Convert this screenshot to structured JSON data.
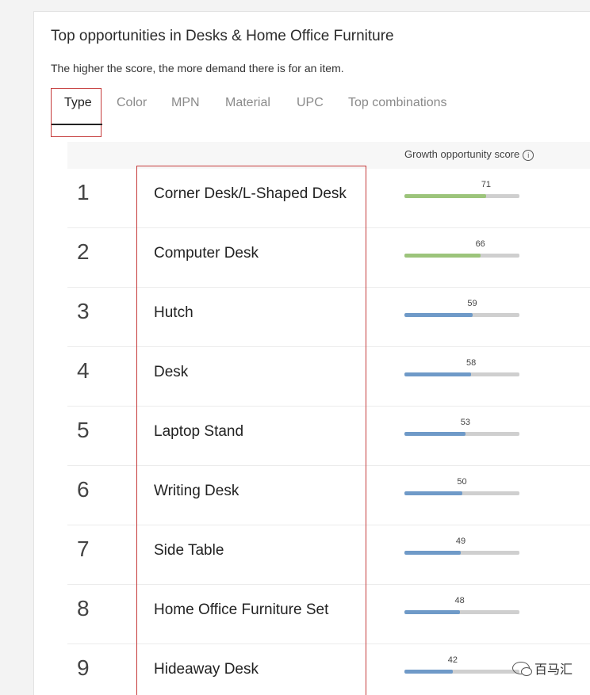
{
  "header": {
    "title": "Top opportunities in Desks & Home Office Furniture",
    "subtitle": "The higher the score, the more demand there is for an item."
  },
  "tabs": [
    {
      "label": "Type",
      "active": true
    },
    {
      "label": "Color",
      "active": false
    },
    {
      "label": "MPN",
      "active": false
    },
    {
      "label": "Material",
      "active": false
    },
    {
      "label": "UPC",
      "active": false
    },
    {
      "label": "Top combinations",
      "active": false
    }
  ],
  "table": {
    "score_header": "Growth opportunity score",
    "info_icon": "info-circle-icon",
    "score_max": 100,
    "rows": [
      {
        "rank": "1",
        "name": "Corner Desk/L-Shaped Desk",
        "score": 71,
        "color": "#9cc47b"
      },
      {
        "rank": "2",
        "name": "Computer Desk",
        "score": 66,
        "color": "#9cc47b"
      },
      {
        "rank": "3",
        "name": "Hutch",
        "score": 59,
        "color": "#6f9ac8"
      },
      {
        "rank": "4",
        "name": "Desk",
        "score": 58,
        "color": "#6f9ac8"
      },
      {
        "rank": "5",
        "name": "Laptop Stand",
        "score": 53,
        "color": "#6f9ac8"
      },
      {
        "rank": "6",
        "name": "Writing Desk",
        "score": 50,
        "color": "#6f9ac8"
      },
      {
        "rank": "7",
        "name": "Side Table",
        "score": 49,
        "color": "#6f9ac8"
      },
      {
        "rank": "8",
        "name": "Home Office Furniture Set",
        "score": 48,
        "color": "#6f9ac8"
      },
      {
        "rank": "9",
        "name": "Hideaway Desk",
        "score": 42,
        "color": "#6f9ac8"
      }
    ]
  },
  "watermark": {
    "label": "百马汇",
    "icon": "wechat-icon"
  }
}
